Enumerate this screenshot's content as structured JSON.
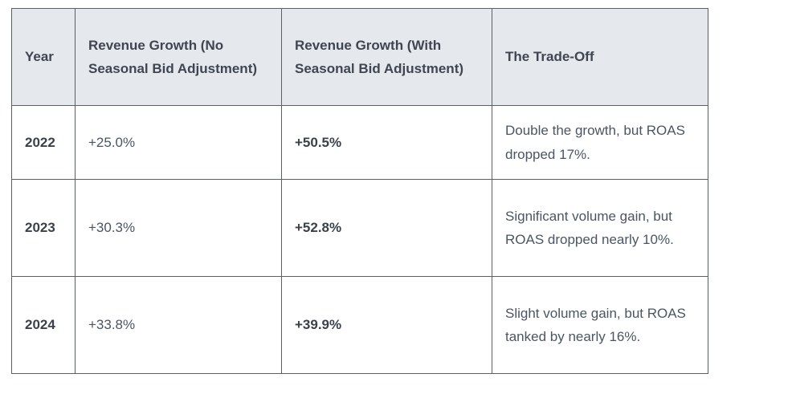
{
  "table": {
    "headers": [
      "Year",
      "Revenue Growth (No Seasonal Bid Adjustment)",
      "Revenue Growth (With Seasonal Bid Adjustment)",
      "The Trade-Off"
    ],
    "rows": [
      {
        "year": "2022",
        "no_adjustment": "+25.0%",
        "with_adjustment": "+50.5%",
        "trade_off": "Double the growth, but ROAS dropped 17%."
      },
      {
        "year": "2023",
        "no_adjustment": "+30.3%",
        "with_adjustment": "+52.8%",
        "trade_off": "Significant volume gain, but ROAS dropped nearly 10%."
      },
      {
        "year": "2024",
        "no_adjustment": "+33.8%",
        "with_adjustment": "+39.9%",
        "trade_off": "Slight volume gain, but ROAS tanked by nearly 16%."
      }
    ]
  }
}
